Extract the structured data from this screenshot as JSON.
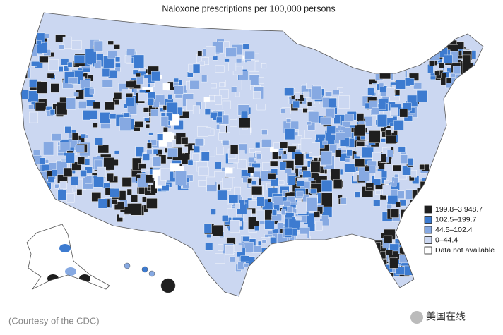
{
  "title": "Naloxone prescriptions per 100,000 persons",
  "legend": [
    {
      "label": "199.8–3,948.7",
      "color": "#1f1f1f"
    },
    {
      "label": "102.5–199.7",
      "color": "#3d7bd0"
    },
    {
      "label": "44.5–102.4",
      "color": "#86a9e2"
    },
    {
      "label": "0–44.4",
      "color": "#cbd7f1"
    },
    {
      "label": "Data not available",
      "color": "#ffffff"
    }
  ],
  "caption": "(Courtesy of the CDC)",
  "watermark": "美国在线"
}
